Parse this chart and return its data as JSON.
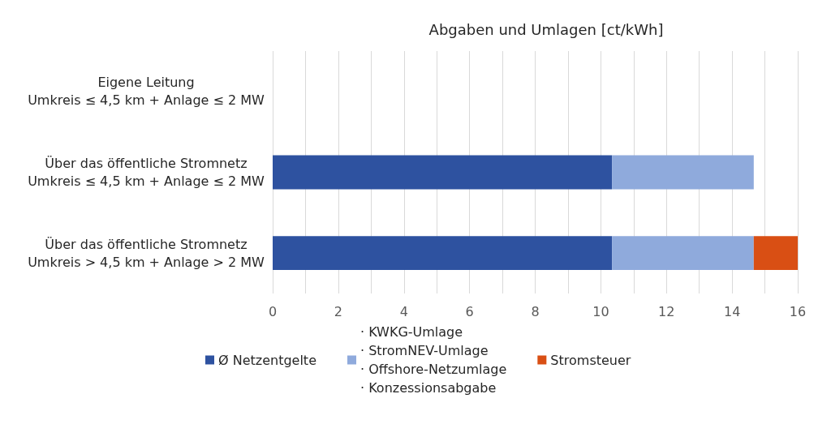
{
  "chart_data": {
    "type": "bar",
    "orientation": "horizontal",
    "stacked": true,
    "title": "Abgaben und Umlagen [ct/kWh]",
    "categories": [
      "Eigene Leitung\nUmkreis ≤ 4,5 km + Anlage ≤ 2 MW",
      "Über das öffentliche Stromnetz\nUmkreis ≤ 4,5 km + Anlage ≤ 2 MW",
      "Über das öffentliche Stromnetz\nUmkreis > 4,5 km + Anlage > 2 MW"
    ],
    "series": [
      {
        "name": "Ø Netzentgelte",
        "color": "#2e52a0",
        "values": [
          null,
          10.34,
          10.34
        ]
      },
      {
        "name": "· KWKG-Umlage\n· StromNEV-Umlage\n· Offshore-Netzumlage\n· Konzessionsabgabe",
        "color": "#8faadc",
        "values": [
          null,
          4.32,
          4.32
        ]
      },
      {
        "name": "Stromsteuer",
        "color": "#d94f14",
        "values": [
          null,
          null,
          1.39
        ]
      }
    ],
    "xlim": [
      0,
      16
    ],
    "xticks": [
      0,
      {
        "value": 1,
        "label": null
      },
      2,
      {
        "value": 3,
        "label": null
      },
      4,
      {
        "value": 5,
        "label": null
      },
      6,
      {
        "value": 7,
        "label": null
      },
      8,
      {
        "value": 9,
        "label": null
      },
      10,
      {
        "value": 11,
        "label": null
      },
      12,
      {
        "value": 13,
        "label": null
      },
      14,
      {
        "value": 15,
        "label": null
      },
      16
    ],
    "grid": "x",
    "legend": "bottom"
  }
}
